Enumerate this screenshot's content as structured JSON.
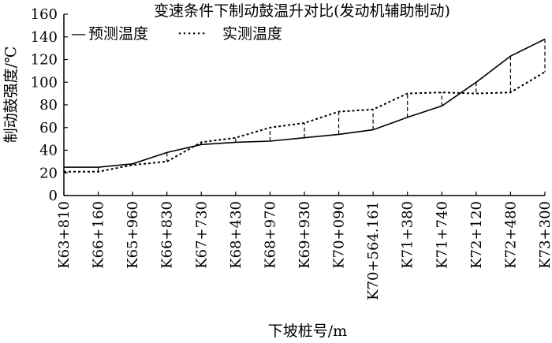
{
  "chart_data": {
    "type": "line",
    "title": "变速条件下制动鼓温升对比(发动机辅助制动)",
    "xlabel": "下坡桩号/m",
    "ylabel": "制动鼓强度/℃",
    "ylim": [
      0,
      160
    ],
    "yticks": [
      0,
      20,
      40,
      60,
      80,
      100,
      120,
      140,
      160
    ],
    "grid": false,
    "legend_position": "top-left",
    "categories": [
      "K63+810",
      "K66+160",
      "K65+960",
      "K66+830",
      "K67+730",
      "K68+430",
      "K68+970",
      "K69+930",
      "K70+090",
      "K70+564.161",
      "K71+380",
      "K71+740",
      "K72+120",
      "K72+480",
      "K73+300"
    ],
    "series": [
      {
        "name": "预测温度",
        "line_style": "solid",
        "legend_marker": "—",
        "values": [
          25,
          25,
          28,
          38,
          45,
          47,
          48,
          51,
          54,
          58,
          69,
          79,
          100,
          123,
          138
        ]
      },
      {
        "name": "实测温度",
        "line_style": "dotted",
        "legend_marker": "······",
        "values": [
          21,
          21,
          27,
          30,
          47,
          51,
          60,
          64,
          74,
          76,
          90,
          91,
          90,
          91,
          109
        ]
      }
    ],
    "difference_connectors": "dashed vertical lines between the two series at each category"
  }
}
